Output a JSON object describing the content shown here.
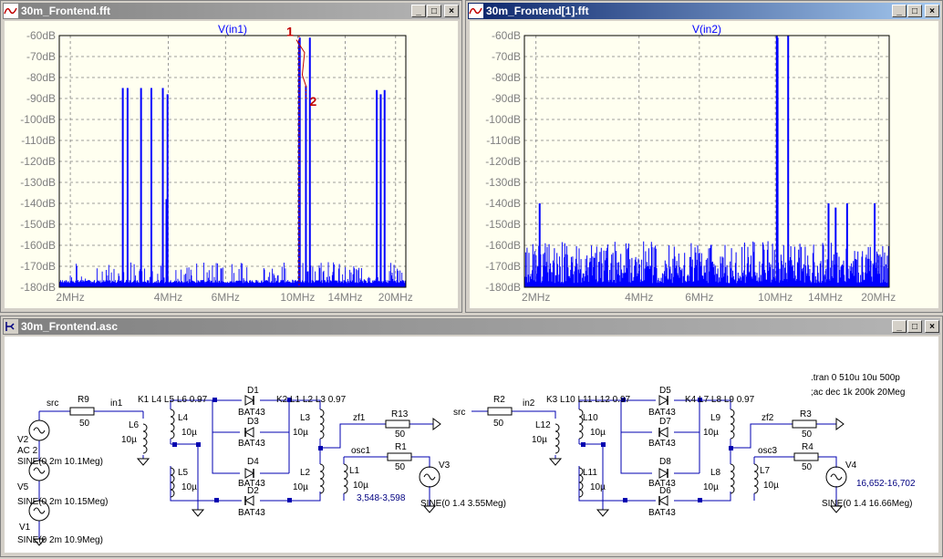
{
  "windows": {
    "fft1": {
      "title": "30m_Frontend.fft",
      "trace": "V(in1)"
    },
    "fft2": {
      "title": "30m_Frontend[1].fft",
      "trace": "V(in2)"
    },
    "schematic": {
      "title": "30m_Frontend.asc"
    }
  },
  "title_buttons": {
    "minimize": "_",
    "maximize": "□",
    "close": "×"
  },
  "colors": {
    "trace": "#0000ff",
    "plot_bg": "#fffff0",
    "schematic_wire": "#0000b0",
    "cursor": "#c00000",
    "active_title": "#0a246a",
    "inactive_title": "#808080"
  },
  "cursor_markers": {
    "c1": "1",
    "c2": "2"
  },
  "chart_data": [
    {
      "type": "line",
      "title": "V(in1)",
      "x_scale": "log",
      "x_tick_labels": [
        "2MHz",
        "4MHz",
        "6MHz",
        "10MHz",
        "14MHz",
        "20MHz"
      ],
      "x_ticks_mhz": [
        2,
        4,
        6,
        10,
        14,
        20
      ],
      "y_tick_labels": [
        "-60dB",
        "-70dB",
        "-80dB",
        "-90dB",
        "-100dB",
        "-110dB",
        "-120dB",
        "-130dB",
        "-140dB",
        "-150dB",
        "-160dB",
        "-170dB",
        "-180dB"
      ],
      "ylim": [
        -180,
        -60
      ],
      "noise_floor_db": [
        -178,
        -168
      ],
      "peaks": [
        {
          "f": 2.9,
          "db": -85
        },
        {
          "f": 3.0,
          "db": -85
        },
        {
          "f": 3.3,
          "db": -85
        },
        {
          "f": 3.55,
          "db": -85
        },
        {
          "f": 3.85,
          "db": -85
        },
        {
          "f": 3.98,
          "db": -88
        },
        {
          "f": 3.95,
          "db": -138
        },
        {
          "f": 10.1,
          "db": -62
        },
        {
          "f": 10.15,
          "db": -61
        },
        {
          "f": 10.6,
          "db": -84
        },
        {
          "f": 10.9,
          "db": -61
        },
        {
          "f": 17.5,
          "db": -86
        },
        {
          "f": 18.0,
          "db": -88
        },
        {
          "f": 18.5,
          "db": -86
        }
      ]
    },
    {
      "type": "line",
      "title": "V(in2)",
      "x_scale": "log",
      "x_tick_labels": [
        "2MHz",
        "4MHz",
        "6MHz",
        "10MHz",
        "14MHz",
        "20MHz"
      ],
      "x_ticks_mhz": [
        2,
        4,
        6,
        10,
        14,
        20
      ],
      "y_tick_labels": [
        "-60dB",
        "-70dB",
        "-80dB",
        "-90dB",
        "-100dB",
        "-110dB",
        "-120dB",
        "-130dB",
        "-140dB",
        "-150dB",
        "-160dB",
        "-170dB",
        "-180dB"
      ],
      "ylim": [
        -180,
        -60
      ],
      "noise_floor_db": [
        -178,
        -158
      ],
      "peaks": [
        {
          "f": 2.05,
          "db": -140
        },
        {
          "f": 10.1,
          "db": -60
        },
        {
          "f": 10.15,
          "db": -61
        },
        {
          "f": 10.9,
          "db": -60
        },
        {
          "f": 14.3,
          "db": -140
        },
        {
          "f": 15.0,
          "db": -142
        },
        {
          "f": 16.2,
          "db": -140
        },
        {
          "f": 19.5,
          "db": -140
        }
      ]
    }
  ],
  "schematic": {
    "directives": [
      ".tran 0 510u 10u 500p",
      ";ac dec 1k 200k 20Meg"
    ],
    "labels": {
      "src1": "src",
      "r9": "R9",
      "r9v": "50",
      "in1": "in1",
      "k1": "K1 L4 L5 L6 0.97",
      "k2": "K2 L1 L2 L3 0.97",
      "l6": "L6",
      "l6v": "10µ",
      "l4": "L4",
      "l4v": "10µ",
      "l5": "L5",
      "l5v": "10µ",
      "l3": "L3",
      "l3v": "10µ",
      "l2": "L2",
      "l2v": "10µ",
      "l1": "L1",
      "l1v": "10µ",
      "d1": "D1",
      "d1m": "BAT43",
      "d3": "D3",
      "d3m": "BAT43",
      "d4": "D4",
      "d4m": "BAT43",
      "d2": "D2",
      "d2m": "BAT43",
      "zf1": "zf1",
      "r13": "R13",
      "r13v": "50",
      "osc1": "osc1",
      "r1": "R1",
      "r1v": "50",
      "v3": "V3",
      "v3s": "SINE(0 1.4 3.55Meg)",
      "osc1note": "3,548-3,598",
      "v2": "V2",
      "v2ac": "AC 2",
      "v2s": "SINE(0 2m 10.1Meg)",
      "v5": "V5",
      "v5s": "SINE(0 2m 10.15Meg)",
      "v1": "V1",
      "v1s": "SINE(0 2m 10.9Meg)",
      "src2": "src",
      "r2": "R2",
      "r2v": "50",
      "in2": "in2",
      "k3": "K3 L10 L11 L12 0.97",
      "k4": "K4 L7 L8 L9 0.97",
      "l12": "L12",
      "l12v": "10µ",
      "l10": "L10",
      "l10v": "10µ",
      "l11": "L11",
      "l11v": "10µ",
      "l9": "L9",
      "l9v": "10µ",
      "l8": "L8",
      "l8v": "10µ",
      "l7": "L7",
      "l7v": "10µ",
      "d5": "D5",
      "d5m": "BAT43",
      "d7": "D7",
      "d7m": "BAT43",
      "d8": "D8",
      "d8m": "BAT43",
      "d6": "D6",
      "d6m": "BAT43",
      "zf2": "zf2",
      "r3": "R3",
      "r3v": "50",
      "osc3": "osc3",
      "r4": "R4",
      "r4v": "50",
      "v4": "V4",
      "v4s": "SINE(0 1.4 16.66Meg)",
      "osc3note": "16,652-16,702"
    }
  }
}
